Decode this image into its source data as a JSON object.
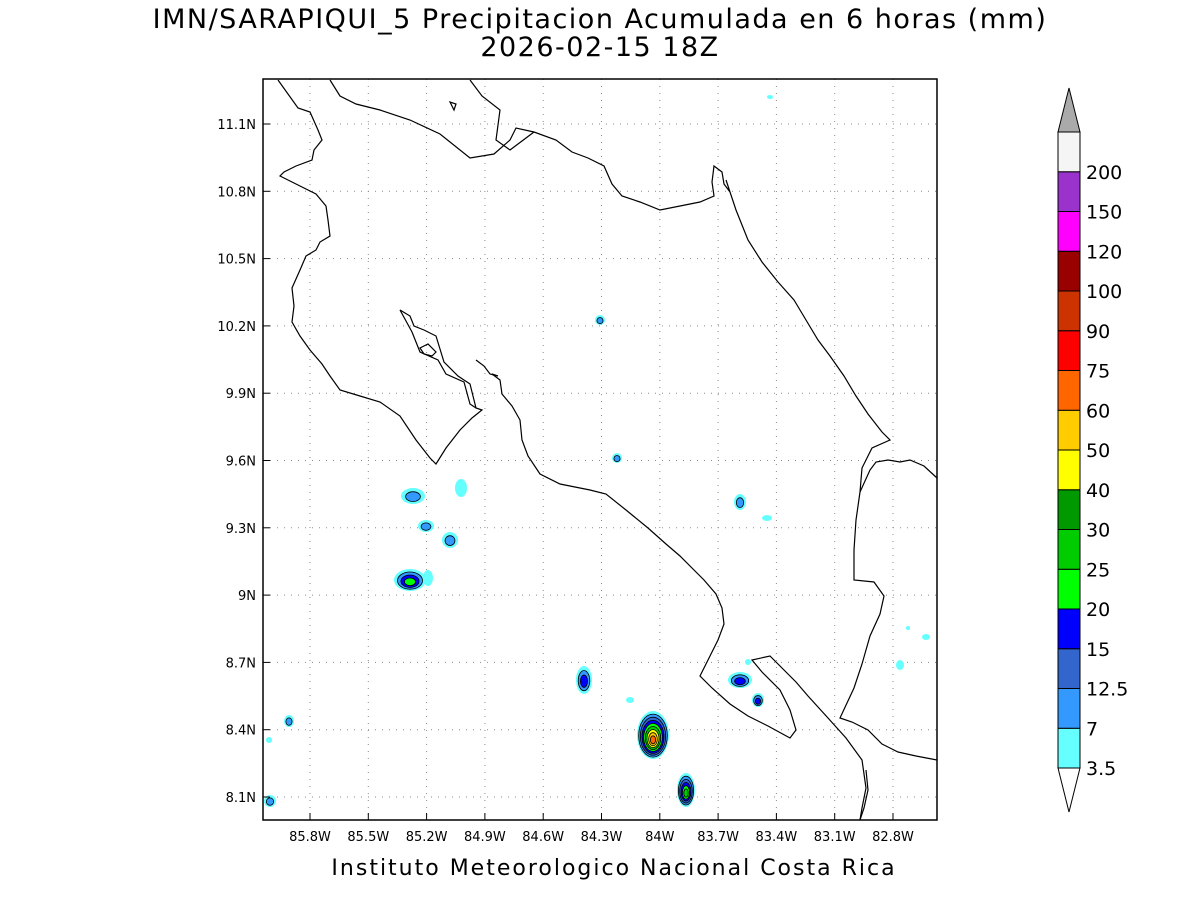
{
  "header": {
    "title": "IMN/SARAPIQUI_5 Precipitacion Acumulada en 6 horas (mm)",
    "subtitle": "2026-02-15 18Z"
  },
  "footer": {
    "credit": "Instituto Meteorologico Nacional Costa Rica"
  },
  "map": {
    "variable": "Precipitacion Acumulada en 6 horas",
    "units": "mm",
    "lon_ticks": [
      "85.8W",
      "85.5W",
      "85.2W",
      "84.9W",
      "84.6W",
      "84.3W",
      "84W",
      "83.7W",
      "83.4W",
      "83.1W",
      "82.8W"
    ],
    "lat_ticks": [
      "11.1N",
      "10.8N",
      "10.5N",
      "10.2N",
      "9.9N",
      "9.6N",
      "9.3N",
      "9N",
      "8.7N",
      "8.4N",
      "8.1N"
    ],
    "gridlines": "dotted",
    "coastline_color": "#000000"
  },
  "colorbar": {
    "labels": [
      "3.5",
      "7",
      "12.5",
      "15",
      "20",
      "25",
      "30",
      "40",
      "50",
      "60",
      "75",
      "90",
      "100",
      "120",
      "150",
      "200"
    ],
    "colors": [
      "#66ffff",
      "#3399ff",
      "#3366cc",
      "#0000ff",
      "#00ff00",
      "#00cc00",
      "#009900",
      "#ffff00",
      "#ffcc00",
      "#ff6600",
      "#ff0000",
      "#cc3300",
      "#990000",
      "#ff00ff",
      "#9933cc",
      "#f5f5f5"
    ],
    "lower_end": "#ffffff",
    "upper_end": "#aaaaaa"
  }
}
